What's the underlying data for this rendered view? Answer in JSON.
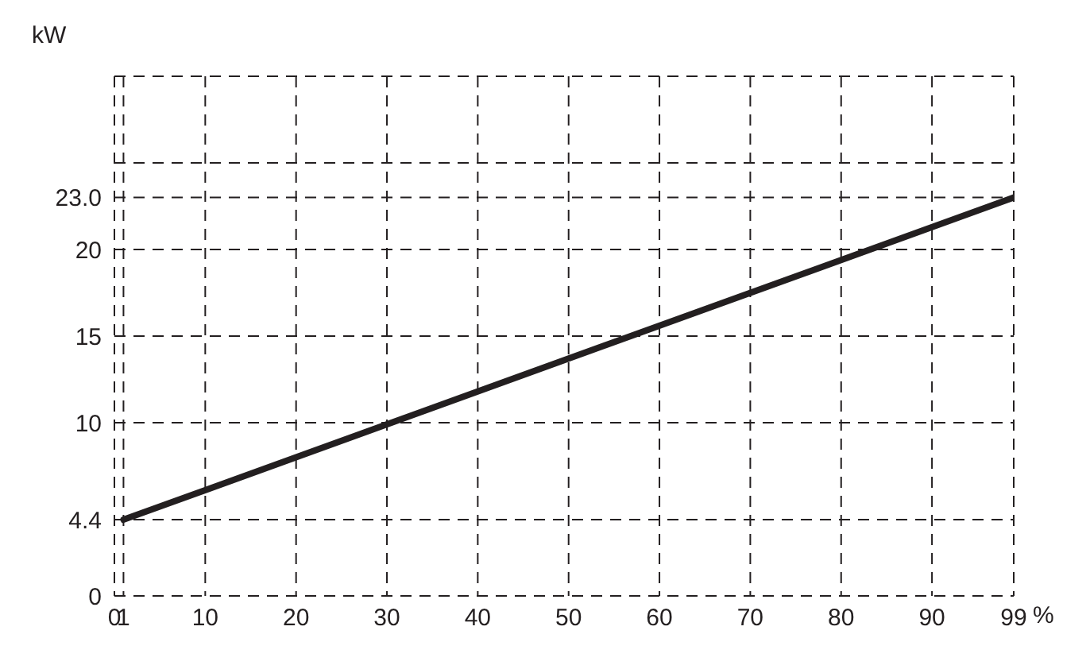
{
  "chart_data": {
    "type": "line",
    "ylabel": "kW",
    "xlabel": "%",
    "x": [
      1,
      99
    ],
    "series": [
      {
        "color": "#231f20",
        "values": [
          4.4,
          23.0
        ]
      }
    ],
    "xlim": [
      0,
      99
    ],
    "xticks": [
      0,
      1,
      10,
      20,
      30,
      40,
      50,
      60,
      70,
      80,
      90,
      99
    ],
    "ylim": [
      0,
      30
    ],
    "yticks": [
      0,
      4.4,
      10,
      15,
      20,
      {
        "value": 23,
        "label": "23.0"
      },
      {
        "value": 25,
        "label": null
      },
      {
        "value": 30,
        "label": null
      }
    ],
    "grid": true,
    "marker": "none",
    "line_style": "solid"
  }
}
